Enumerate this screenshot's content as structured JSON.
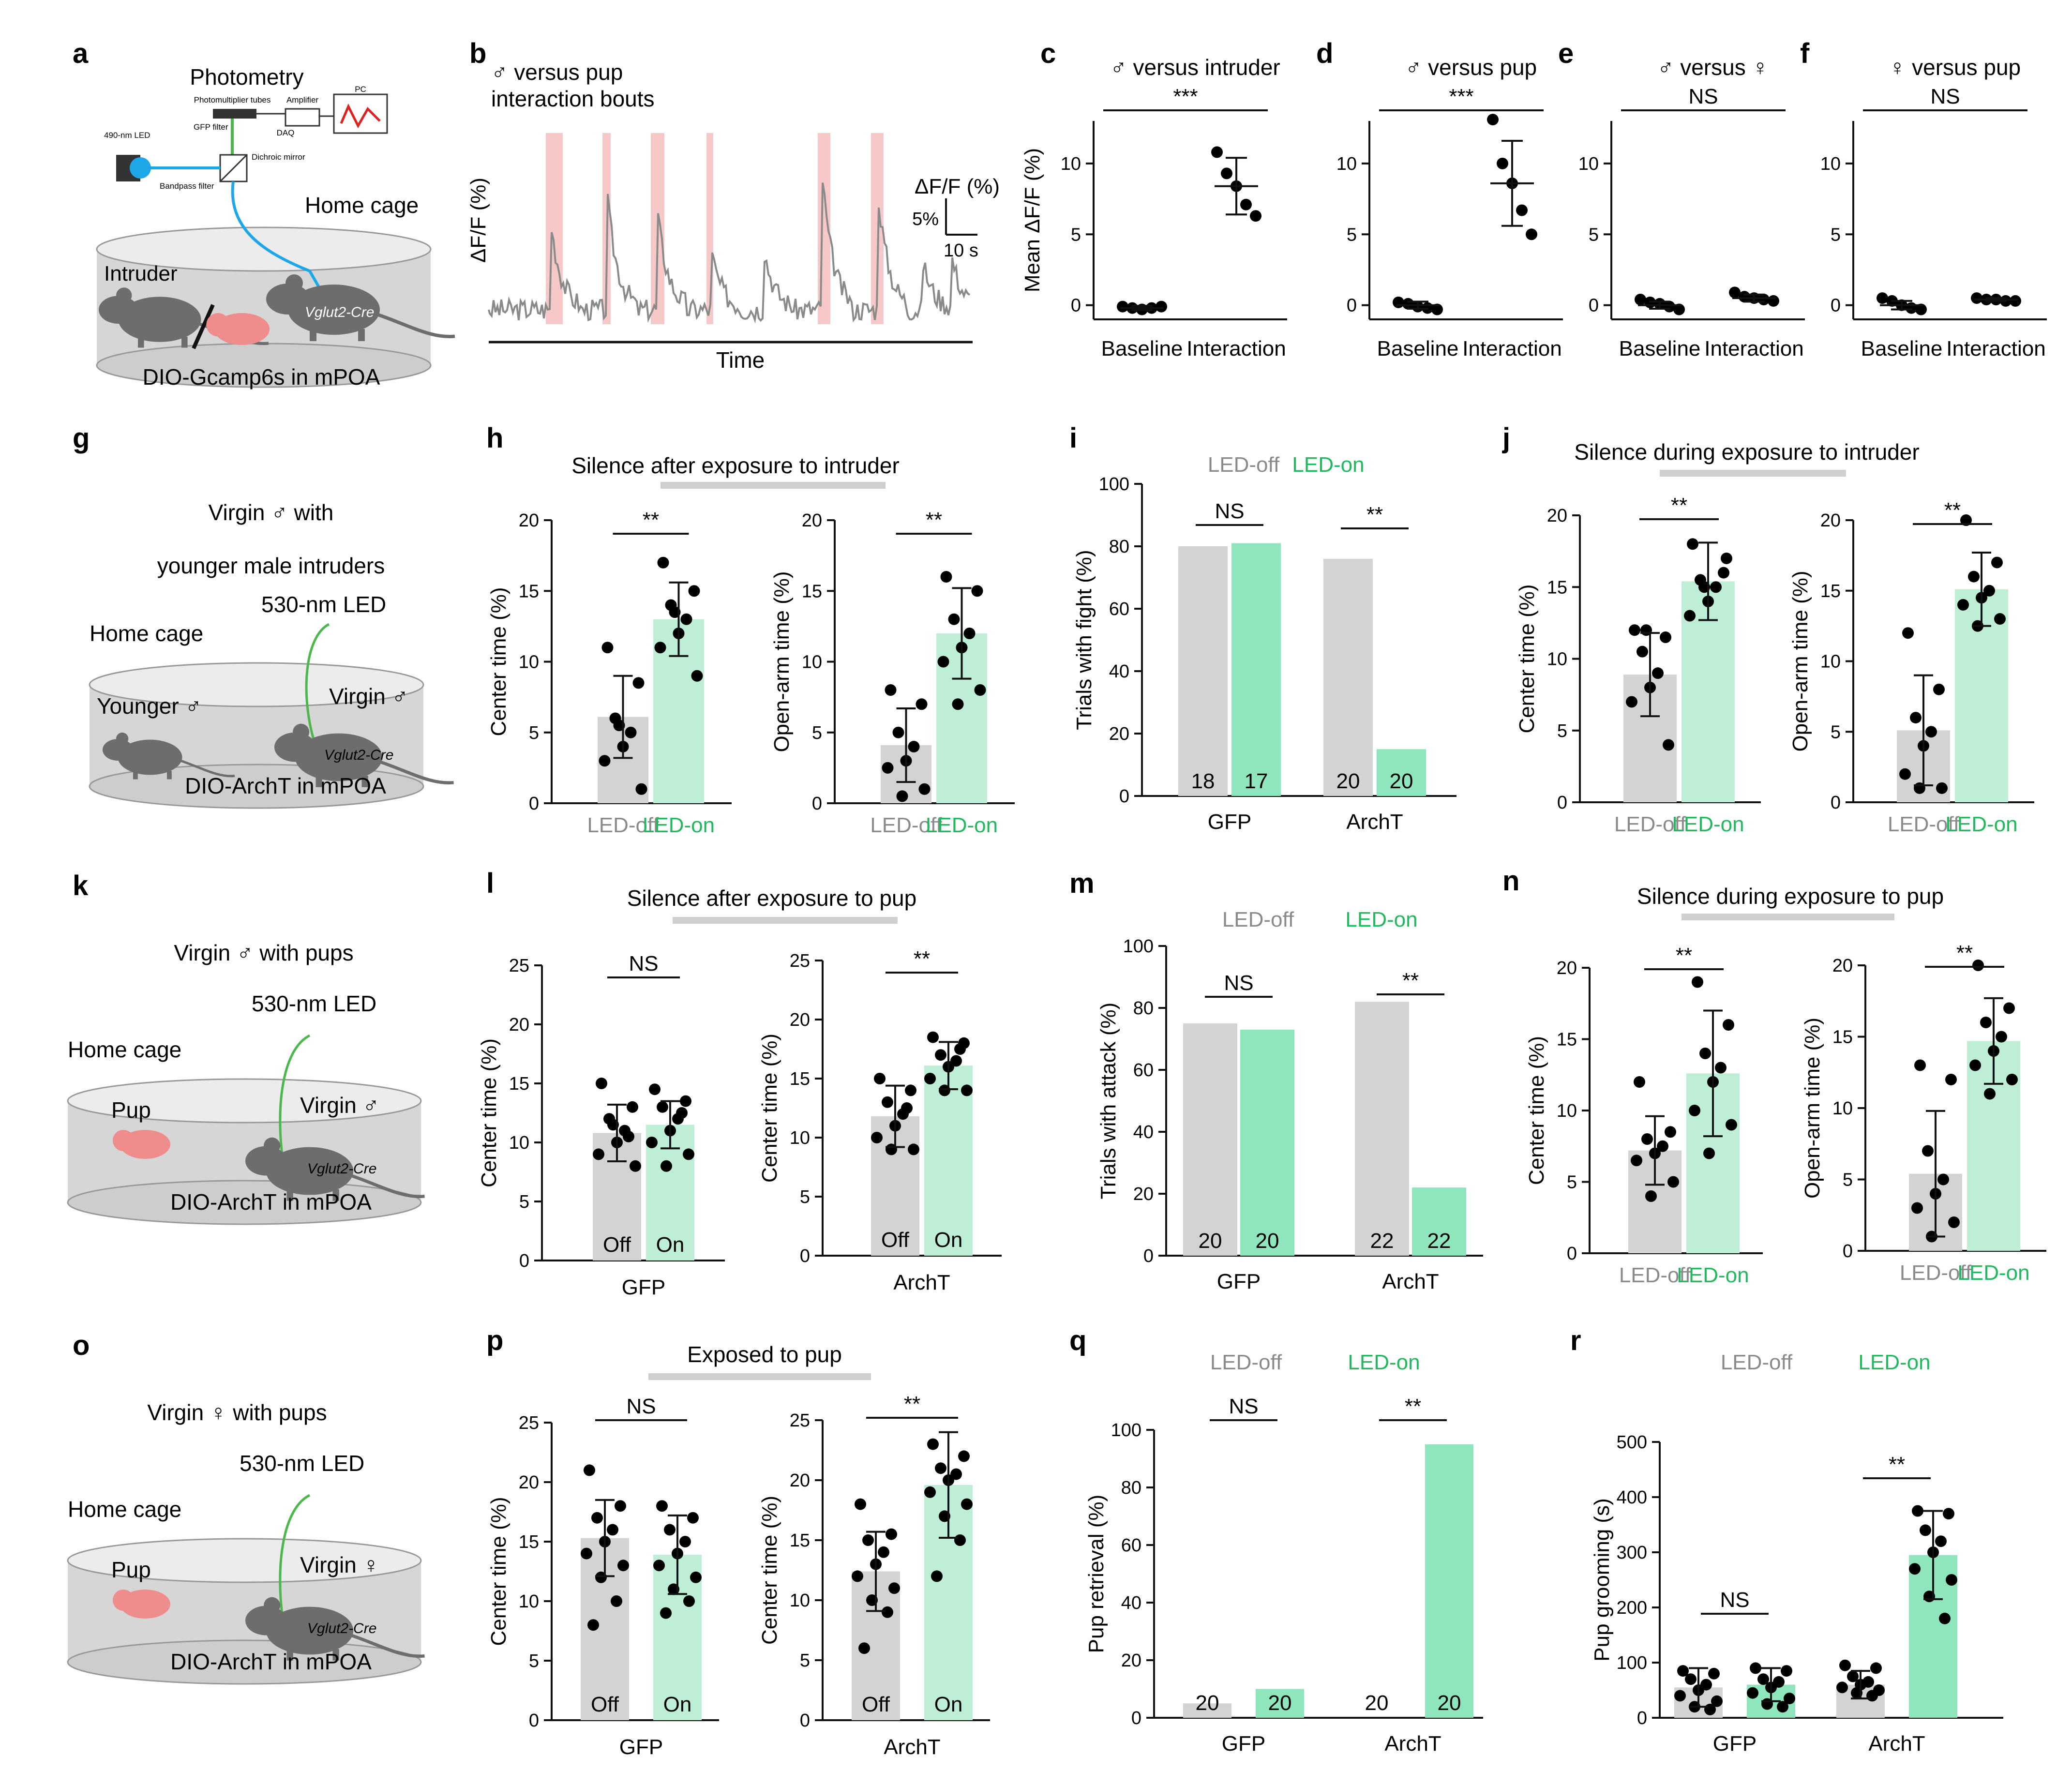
{
  "colors": {
    "off": "#d3d3d3",
    "on": "#bfeed6",
    "on_dark": "#8fe6bd",
    "on_text": "#21b85e",
    "off_text": "#8a8a8a",
    "shade": "#f6c8c8",
    "trace": "#8a8a8a",
    "fiber_blue": "#1ea7e8",
    "fiber_green": "#4cb84c",
    "pink": "#ef8c8c",
    "mouse": "#6d6d6d"
  },
  "diagrams": {
    "a": {
      "label": "a",
      "title": "Photometry",
      "home": "Home cage",
      "intruder": "Intruder",
      "mouse_label": "Vglut2-Cre",
      "base": "DIO-Gcamp6s in mPOA",
      "parts": {
        "pmt": "Photomultiplier tubes",
        "amp": "Amplifier",
        "pc": "PC",
        "daq": "DAQ",
        "gfp": "GFP filter",
        "led": "490-nm LED",
        "dich": "Dichroic mirror",
        "band": "Bandpass filter",
        "fiber": "Fiber"
      }
    },
    "g": {
      "label": "g",
      "line1": "Virgin ♂ with",
      "line2": "younger male intruders",
      "led": "530-nm LED",
      "home": "Home cage",
      "younger": "Younger ♂",
      "virgin": "Virgin ♂",
      "mouse_label": "Vglut2-Cre",
      "base": "DIO-ArchT in mPOA"
    },
    "k": {
      "label": "k",
      "line1": "Virgin ♂ with pups",
      "led": "530-nm LED",
      "home": "Home cage",
      "pup": "Pup",
      "virgin": "Virgin ♂",
      "mouse_label": "Vglut2-Cre",
      "base": "DIO-ArchT in mPOA"
    },
    "o": {
      "label": "o",
      "line1": "Virgin ♀ with pups",
      "led": "530-nm LED",
      "home": "Home cage",
      "pup": "Pup",
      "virgin": "Virgin ♀",
      "mouse_label": "Vglut2-Cre",
      "base": "DIO-ArchT in mPOA"
    }
  },
  "chart_data": [
    {
      "id": "b",
      "type": "line",
      "title": "♂ versus pup interaction bouts",
      "xlabel": "Time",
      "ylabel": "ΔF/F (%)",
      "scalebar": {
        "y": "5%",
        "x": "10 s",
        "y_label": "ΔF/F (%)"
      }
    },
    {
      "id": "c",
      "type": "scatter",
      "title": "♂ versus intruder",
      "ylabel": "Mean ΔF/F (%)",
      "ylim": [
        -1,
        13
      ],
      "yticks": [
        0,
        5,
        10
      ],
      "categories": [
        "Baseline",
        "Interaction"
      ],
      "sig": "***",
      "points": [
        [
          -0.1,
          -0.2,
          -0.3,
          -0.2,
          -0.1
        ],
        [
          10.8,
          9.3,
          8.4,
          7.1,
          6.3
        ]
      ],
      "mean": [
        -0.2,
        8.4
      ],
      "err": [
        0.15,
        2.0
      ]
    },
    {
      "id": "d",
      "type": "scatter",
      "title": "♂ versus pup",
      "ylabel": "",
      "ylim": [
        -1,
        13
      ],
      "yticks": [
        0,
        5,
        10
      ],
      "categories": [
        "Baseline",
        "Interaction"
      ],
      "sig": "***",
      "points": [
        [
          0.2,
          0.1,
          -0.1,
          -0.2,
          -0.3
        ],
        [
          13.1,
          10.0,
          8.6,
          6.7,
          5.0
        ]
      ],
      "mean": [
        0.0,
        8.6
      ],
      "err": [
        0.25,
        3.0
      ]
    },
    {
      "id": "e",
      "type": "scatter",
      "title": "♂ versus ♀",
      "ylabel": "",
      "ylim": [
        -1,
        13
      ],
      "yticks": [
        0,
        5,
        10
      ],
      "categories": [
        "Baseline",
        "Interaction"
      ],
      "sig": "NS",
      "points": [
        [
          0.4,
          0.2,
          0.1,
          -0.1,
          -0.3
        ],
        [
          0.9,
          0.6,
          0.5,
          0.4,
          0.3
        ]
      ],
      "mean": [
        0.0,
        0.5
      ],
      "err": [
        0.25,
        0.25
      ]
    },
    {
      "id": "f",
      "type": "scatter",
      "title": "♀ versus pup",
      "ylabel": "",
      "ylim": [
        -1,
        13
      ],
      "yticks": [
        0,
        5,
        10
      ],
      "categories": [
        "Baseline",
        "Interaction"
      ],
      "sig": "NS",
      "points": [
        [
          0.5,
          0.3,
          0.0,
          -0.2,
          -0.3
        ],
        [
          0.5,
          0.4,
          0.4,
          0.3,
          0.3
        ]
      ],
      "mean": [
        0.0,
        0.4
      ],
      "err": [
        0.3,
        0.1
      ]
    },
    {
      "id": "h",
      "type": "bar",
      "title": "Silence after exposure to intruder",
      "panels": [
        {
          "ylabel": "Center time (%)",
          "ylim": [
            0,
            20
          ],
          "yticks": [
            0,
            5,
            10,
            15,
            20
          ],
          "categories": [
            "LED-off",
            "LED-on"
          ],
          "values": [
            6.1,
            13.0
          ],
          "err": [
            2.9,
            2.6
          ],
          "sig": "**",
          "points": [
            [
              11,
              8.5,
              6,
              5,
              4,
              3,
              1,
              5.5
            ],
            [
              17,
              15,
              14,
              13,
              12,
              11,
              9,
              13.5
            ]
          ]
        },
        {
          "ylabel": "Open-arm time (%)",
          "ylim": [
            0,
            20
          ],
          "yticks": [
            0,
            5,
            10,
            15,
            20
          ],
          "categories": [
            "LED-off",
            "LED-on"
          ],
          "values": [
            4.1,
            12.0
          ],
          "err": [
            2.6,
            3.2
          ],
          "sig": "**",
          "points": [
            [
              8,
              7,
              5,
              4,
              3,
              2.5,
              1,
              0.5
            ],
            [
              16,
              15,
              13,
              12,
              11,
              10,
              8,
              7
            ]
          ]
        }
      ]
    },
    {
      "id": "i",
      "type": "bar",
      "legend": [
        "LED-off",
        "LED-on"
      ],
      "ylabel": "Trials with fight (%)",
      "ylim": [
        0,
        100
      ],
      "yticks": [
        0,
        20,
        40,
        60,
        80,
        100
      ],
      "categories": [
        "GFP",
        "ArchT"
      ],
      "series": [
        {
          "name": "LED-off",
          "values": [
            80,
            76
          ],
          "n": [
            "18",
            "20"
          ]
        },
        {
          "name": "LED-on",
          "values": [
            81,
            15
          ],
          "n": [
            "17",
            "20"
          ]
        }
      ],
      "sig": [
        "NS",
        "**"
      ]
    },
    {
      "id": "j",
      "type": "bar",
      "title": "Silence during exposure to intruder",
      "panels": [
        {
          "ylabel": "Center time (%)",
          "ylim": [
            0,
            20
          ],
          "yticks": [
            0,
            5,
            10,
            15,
            20
          ],
          "categories": [
            "LED-off",
            "LED-on"
          ],
          "values": [
            8.9,
            15.4
          ],
          "err": [
            2.9,
            2.7
          ],
          "sig": "**",
          "points": [
            [
              12,
              11.5,
              10.5,
              9,
              8,
              7,
              4,
              12
            ],
            [
              18,
              16,
              15.5,
              15,
              14,
              13,
              17,
              15
            ]
          ]
        },
        {
          "ylabel": "Open-arm time (%)",
          "ylim": [
            0,
            20
          ],
          "yticks": [
            0,
            5,
            10,
            15,
            20
          ],
          "categories": [
            "LED-off",
            "LED-on"
          ],
          "values": [
            5.1,
            15.1
          ],
          "err": [
            3.9,
            2.6
          ],
          "sig": "**",
          "points": [
            [
              12,
              8,
              6,
              5,
              4,
              2,
              1,
              1
            ],
            [
              20,
              17,
              16,
              15,
              14.5,
              14,
              13,
              12.5
            ]
          ]
        }
      ]
    },
    {
      "id": "l",
      "type": "bar",
      "title": "Silence after exposure to pup",
      "panels": [
        {
          "ylabel": "Center time (%)",
          "ylim": [
            0,
            25
          ],
          "yticks": [
            0,
            5,
            10,
            15,
            20,
            25
          ],
          "group": "GFP",
          "categories": [
            "Off",
            "On"
          ],
          "values": [
            10.8,
            11.5
          ],
          "err": [
            2.4,
            2.0
          ],
          "sig": "NS",
          "points": [
            [
              15,
              13,
              12,
              11,
              10,
              9,
              8,
              11.5,
              10.5
            ],
            [
              14.5,
              13.5,
              13,
              12,
              11,
              10,
              9,
              8,
              12.5
            ]
          ]
        },
        {
          "ylabel": "Center time (%)",
          "ylim": [
            0,
            25
          ],
          "yticks": [
            0,
            5,
            10,
            15,
            20,
            25
          ],
          "group": "ArchT",
          "categories": [
            "Off",
            "On"
          ],
          "values": [
            11.8,
            16.1
          ],
          "err": [
            2.6,
            2.0
          ],
          "sig": "**",
          "points": [
            [
              15,
              14,
              13,
              12,
              11,
              10,
              9,
              9,
              12.5
            ],
            [
              18.5,
              18,
              17,
              16.5,
              16,
              15,
              14,
              14,
              17.5
            ]
          ]
        }
      ]
    },
    {
      "id": "m",
      "type": "bar",
      "legend": [
        "LED-off",
        "LED-on"
      ],
      "ylabel": "Trials with attack (%)",
      "ylim": [
        0,
        100
      ],
      "yticks": [
        0,
        20,
        40,
        60,
        80,
        100
      ],
      "categories": [
        "GFP",
        "ArchT"
      ],
      "series": [
        {
          "name": "LED-off",
          "values": [
            75,
            82
          ],
          "n": [
            "20",
            "22"
          ]
        },
        {
          "name": "LED-on",
          "values": [
            73,
            22
          ],
          "n": [
            "20",
            "22"
          ]
        }
      ],
      "sig": [
        "NS",
        "**"
      ]
    },
    {
      "id": "n",
      "type": "bar",
      "title": "Silence during exposure to pup",
      "panels": [
        {
          "ylabel": "Center time (%)",
          "ylim": [
            0,
            20
          ],
          "yticks": [
            0,
            5,
            10,
            15,
            20
          ],
          "categories": [
            "LED-off",
            "LED-on"
          ],
          "values": [
            7.2,
            12.6
          ],
          "err": [
            2.4,
            4.4
          ],
          "sig": "**",
          "points": [
            [
              12,
              8.5,
              8,
              7.5,
              7,
              6.5,
              5,
              4
            ],
            [
              19,
              16,
              14,
              13,
              12,
              10,
              9,
              7
            ]
          ]
        },
        {
          "ylabel": "Open-arm time (%)",
          "ylim": [
            0,
            20
          ],
          "yticks": [
            0,
            5,
            10,
            15,
            20
          ],
          "categories": [
            "LED-off",
            "LED-on"
          ],
          "values": [
            5.4,
            14.7
          ],
          "err": [
            4.4,
            3.0
          ],
          "sig": "**",
          "points": [
            [
              13,
              12,
              7,
              5,
              4,
              3,
              2,
              1
            ],
            [
              20,
              17,
              16,
              15,
              14,
              13,
              12,
              11
            ]
          ]
        }
      ]
    },
    {
      "id": "p",
      "type": "bar",
      "title": "Exposed to pup",
      "panels": [
        {
          "ylabel": "Center time (%)",
          "ylim": [
            0,
            25
          ],
          "yticks": [
            0,
            5,
            10,
            15,
            20,
            25
          ],
          "group": "GFP",
          "categories": [
            "Off",
            "On"
          ],
          "values": [
            15.3,
            13.9
          ],
          "err": [
            3.2,
            3.3
          ],
          "sig": "NS",
          "points": [
            [
              21,
              18,
              17,
              16,
              15,
              14,
              13,
              12,
              10,
              8
            ],
            [
              18,
              17,
              16,
              15,
              14,
              13,
              12,
              11,
              10,
              9
            ]
          ]
        },
        {
          "ylabel": "Center time (%)",
          "ylim": [
            0,
            25
          ],
          "yticks": [
            0,
            5,
            10,
            15,
            20,
            25
          ],
          "group": "ArchT",
          "categories": [
            "Off",
            "On"
          ],
          "values": [
            12.4,
            19.6
          ],
          "err": [
            3.3,
            4.4
          ],
          "sig": "**",
          "points": [
            [
              18,
              15.5,
              15,
              14,
              13,
              12,
              11,
              10,
              9,
              6
            ],
            [
              23,
              22,
              21,
              20.5,
              20,
              19,
              18,
              17,
              15,
              12
            ]
          ]
        }
      ]
    },
    {
      "id": "q",
      "type": "bar",
      "legend": [
        "LED-off",
        "LED-on"
      ],
      "ylabel": "Pup retrieval (%)",
      "ylim": [
        0,
        100
      ],
      "yticks": [
        0,
        20,
        40,
        60,
        80,
        100
      ],
      "categories": [
        "GFP",
        "ArchT"
      ],
      "series": [
        {
          "name": "LED-off",
          "values": [
            5,
            0
          ],
          "n": [
            "20",
            "20"
          ]
        },
        {
          "name": "LED-on",
          "values": [
            10,
            95
          ],
          "n": [
            "20",
            "20"
          ]
        }
      ],
      "sig": [
        "NS",
        "**"
      ]
    },
    {
      "id": "r",
      "type": "bar",
      "legend": [
        "LED-off",
        "LED-on"
      ],
      "ylabel": "Pup grooming (s)",
      "ylim": [
        0,
        500
      ],
      "yticks": [
        0,
        100,
        200,
        300,
        400,
        500
      ],
      "categories": [
        "GFP",
        "ArchT"
      ],
      "series": [
        {
          "name": "LED-off",
          "values": [
            55,
            60
          ],
          "err": [
            35,
            25
          ],
          "points": [
            [
              85,
              80,
              70,
              60,
              50,
              40,
              30,
              20,
              15
            ],
            [
              95,
              90,
              75,
              65,
              60,
              55,
              50,
              45,
              40
            ]
          ]
        },
        {
          "name": "LED-on",
          "values": [
            60,
            295
          ],
          "err": [
            30,
            80
          ],
          "points": [
            [
              90,
              85,
              70,
              65,
              55,
              45,
              35,
              25,
              20
            ],
            [
              375,
              370,
              340,
              320,
              300,
              270,
              250,
              220,
              180
            ]
          ]
        }
      ],
      "sig": [
        "NS",
        "**"
      ]
    }
  ]
}
